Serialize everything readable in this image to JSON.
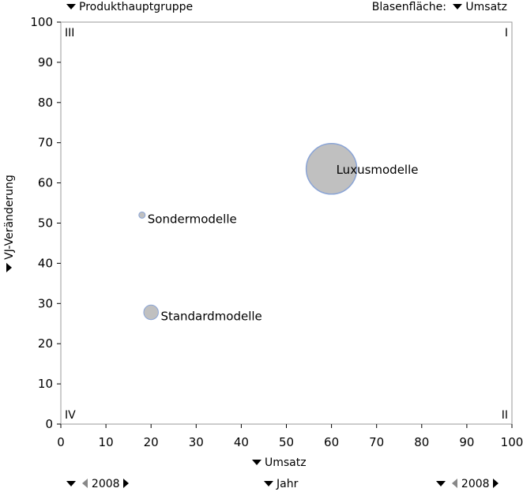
{
  "controls": {
    "top_left_menu": "Produkthauptgruppe",
    "bubble_area_label": "Blasenfläche:",
    "bubble_area_menu": "Umsatz",
    "x_axis_menu": "Umsatz",
    "y_axis_menu": "VJ-Veränderung",
    "bottom_left_year": "2008",
    "bottom_center_menu": "Jahr",
    "bottom_right_year": "2008"
  },
  "quadrants": {
    "top_left": "III",
    "top_right": "I",
    "bottom_left": "IV",
    "bottom_right": "II"
  },
  "colors": {
    "bubble_fill": "#c0c0c0",
    "bubble_stroke": "#8aa4d6",
    "axis": "#9a9a9a"
  },
  "chart_data": {
    "type": "scatter",
    "xlabel": "Umsatz",
    "ylabel": "VJ-Veränderung",
    "xlim": [
      0,
      100
    ],
    "ylim": [
      0,
      100
    ],
    "xticks": [
      0,
      10,
      20,
      30,
      40,
      50,
      60,
      70,
      80,
      90,
      100
    ],
    "yticks": [
      0,
      10,
      20,
      30,
      40,
      50,
      60,
      70,
      80,
      90,
      100
    ],
    "grid": false,
    "bubble_size_by": "Umsatz",
    "points": [
      {
        "label": "Luxusmodelle",
        "x": 60,
        "y": 63.5,
        "size": 60
      },
      {
        "label": "Sondermodelle",
        "x": 18,
        "y": 52,
        "size": 18
      },
      {
        "label": "Standardmodelle",
        "x": 20,
        "y": 27.8,
        "size": 20
      }
    ]
  }
}
